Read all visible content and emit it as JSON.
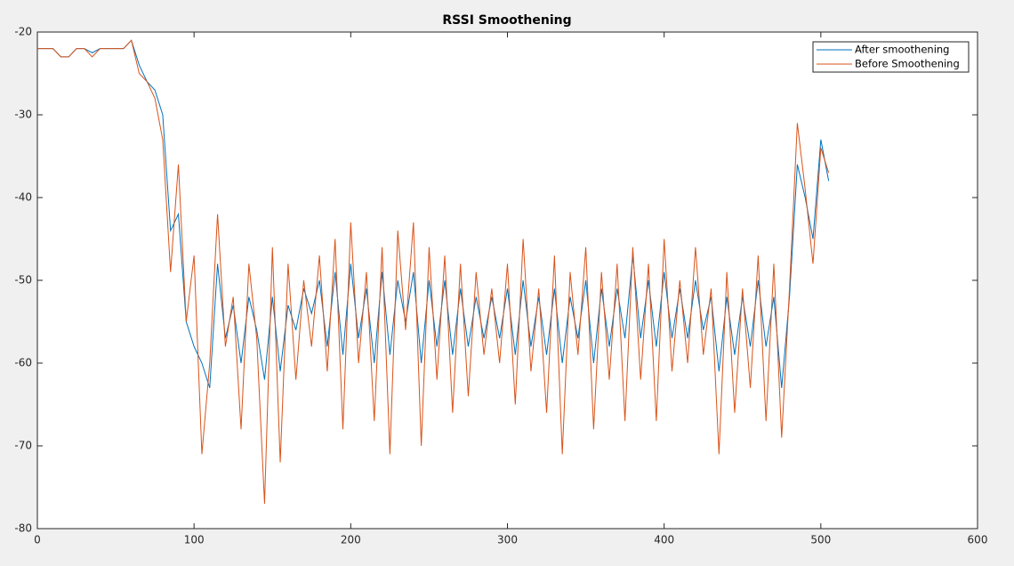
{
  "chart_data": {
    "type": "line",
    "title": "RSSI Smoothening",
    "x": [
      0,
      5,
      10,
      15,
      20,
      25,
      30,
      35,
      40,
      45,
      50,
      55,
      60,
      65,
      70,
      75,
      80,
      85,
      90,
      95,
      100,
      105,
      110,
      115,
      120,
      125,
      130,
      135,
      140,
      145,
      150,
      155,
      160,
      165,
      170,
      175,
      180,
      185,
      190,
      195,
      200,
      205,
      210,
      215,
      220,
      225,
      230,
      235,
      240,
      245,
      250,
      255,
      260,
      265,
      270,
      275,
      280,
      285,
      290,
      295,
      300,
      305,
      310,
      315,
      320,
      325,
      330,
      335,
      340,
      345,
      350,
      355,
      360,
      365,
      370,
      375,
      380,
      385,
      390,
      395,
      400,
      405,
      410,
      415,
      420,
      425,
      430,
      435,
      440,
      445,
      450,
      455,
      460,
      465,
      470,
      475,
      480,
      485,
      490,
      495,
      500,
      505
    ],
    "series": [
      {
        "name": "After smoothening",
        "color": "#0072bd",
        "values": [
          -22,
          -22,
          -22,
          -23,
          -23,
          -22,
          -22,
          -22.5,
          -22,
          -22,
          -22,
          -22,
          -21,
          -24,
          -26,
          -27,
          -30,
          -44,
          -42,
          -55,
          -58,
          -60,
          -63,
          -48,
          -57,
          -53,
          -60,
          -52,
          -56,
          -62,
          -52,
          -61,
          -53,
          -56,
          -51,
          -54,
          -50,
          -58,
          -49,
          -59,
          -48,
          -57,
          -51,
          -60,
          -49,
          -59,
          -50,
          -55,
          -49,
          -60,
          -50,
          -58,
          -50,
          -59,
          -51,
          -58,
          -52,
          -57,
          -52,
          -57,
          -51,
          -59,
          -50,
          -58,
          -52,
          -59,
          -51,
          -60,
          -52,
          -57,
          -50,
          -60,
          -51,
          -58,
          -51,
          -57,
          -47,
          -57,
          -50,
          -58,
          -49,
          -57,
          -51,
          -57,
          -50,
          -56,
          -52,
          -61,
          -52,
          -59,
          -52,
          -58,
          -50,
          -58,
          -52,
          -63,
          -52,
          -36,
          -40,
          -45,
          -33,
          -38
        ]
      },
      {
        "name": "Before Smoothening",
        "color": "#d95319",
        "values": [
          -22,
          -22,
          -22,
          -23,
          -23,
          -22,
          -22,
          -23,
          -22,
          -22,
          -22,
          -22,
          -21,
          -25,
          -26,
          -28,
          -33,
          -49,
          -36,
          -55,
          -47,
          -71,
          -60,
          -42,
          -58,
          -52,
          -68,
          -48,
          -57,
          -77,
          -46,
          -72,
          -48,
          -62,
          -50,
          -58,
          -47,
          -61,
          -45,
          -68,
          -43,
          -60,
          -49,
          -67,
          -46,
          -71,
          -44,
          -56,
          -43,
          -70,
          -46,
          -62,
          -47,
          -66,
          -48,
          -64,
          -49,
          -59,
          -51,
          -60,
          -48,
          -65,
          -45,
          -61,
          -51,
          -66,
          -47,
          -71,
          -49,
          -59,
          -46,
          -68,
          -49,
          -62,
          -48,
          -67,
          -46,
          -62,
          -48,
          -67,
          -45,
          -61,
          -50,
          -60,
          -46,
          -59,
          -51,
          -71,
          -49,
          -66,
          -51,
          -63,
          -47,
          -67,
          -48,
          -69,
          -51,
          -31,
          -39,
          -48,
          -34,
          -37
        ]
      }
    ],
    "xlim": [
      0,
      600
    ],
    "xticks": [
      0,
      100,
      200,
      300,
      400,
      500,
      600
    ],
    "ylim": [
      -80,
      -20
    ],
    "yticks": [
      -80,
      -70,
      -60,
      -50,
      -40,
      -30,
      -20
    ],
    "grid": false,
    "legend": "northeast"
  }
}
